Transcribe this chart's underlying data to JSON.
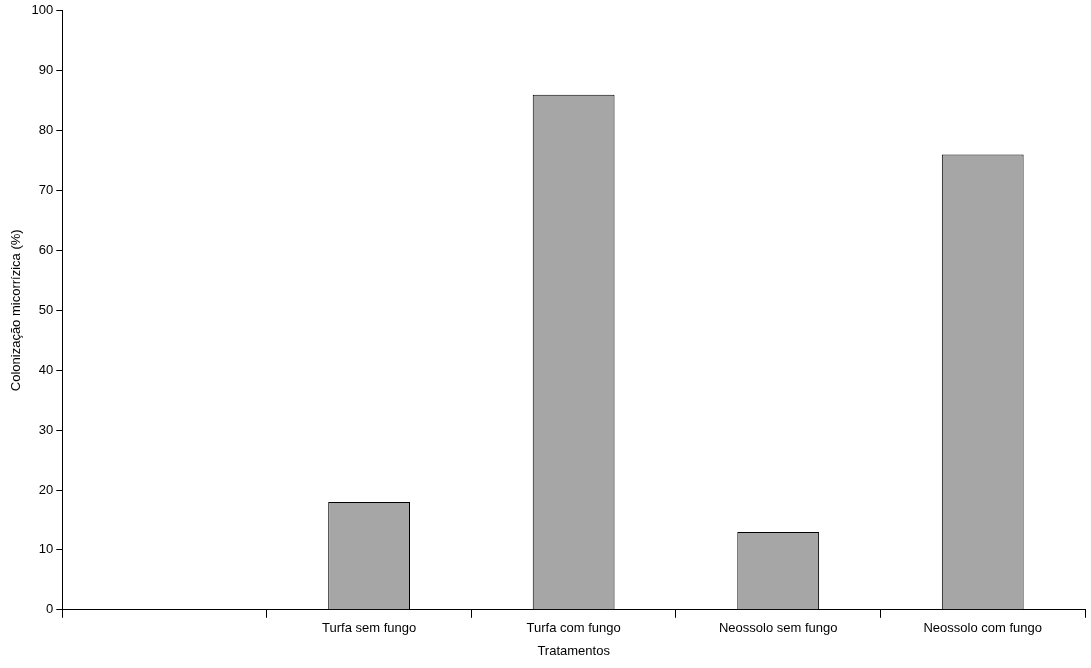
{
  "chart_data": {
    "type": "bar",
    "xlabel": "Tratamentos",
    "ylabel": "Colonização micorrízica (%)",
    "categories": [
      null,
      "Turfa sem fungo",
      "Turfa com fungo",
      "Neossolo sem fungo",
      "Neossolo com fungo"
    ],
    "values": [
      null,
      18,
      86,
      13,
      76
    ],
    "color": "#a6a6a6",
    "ylim": [
      0,
      100
    ],
    "yticks": [
      0,
      10,
      20,
      30,
      40,
      50,
      60,
      70,
      80,
      90,
      100
    ],
    "grid": false,
    "legend": false
  }
}
